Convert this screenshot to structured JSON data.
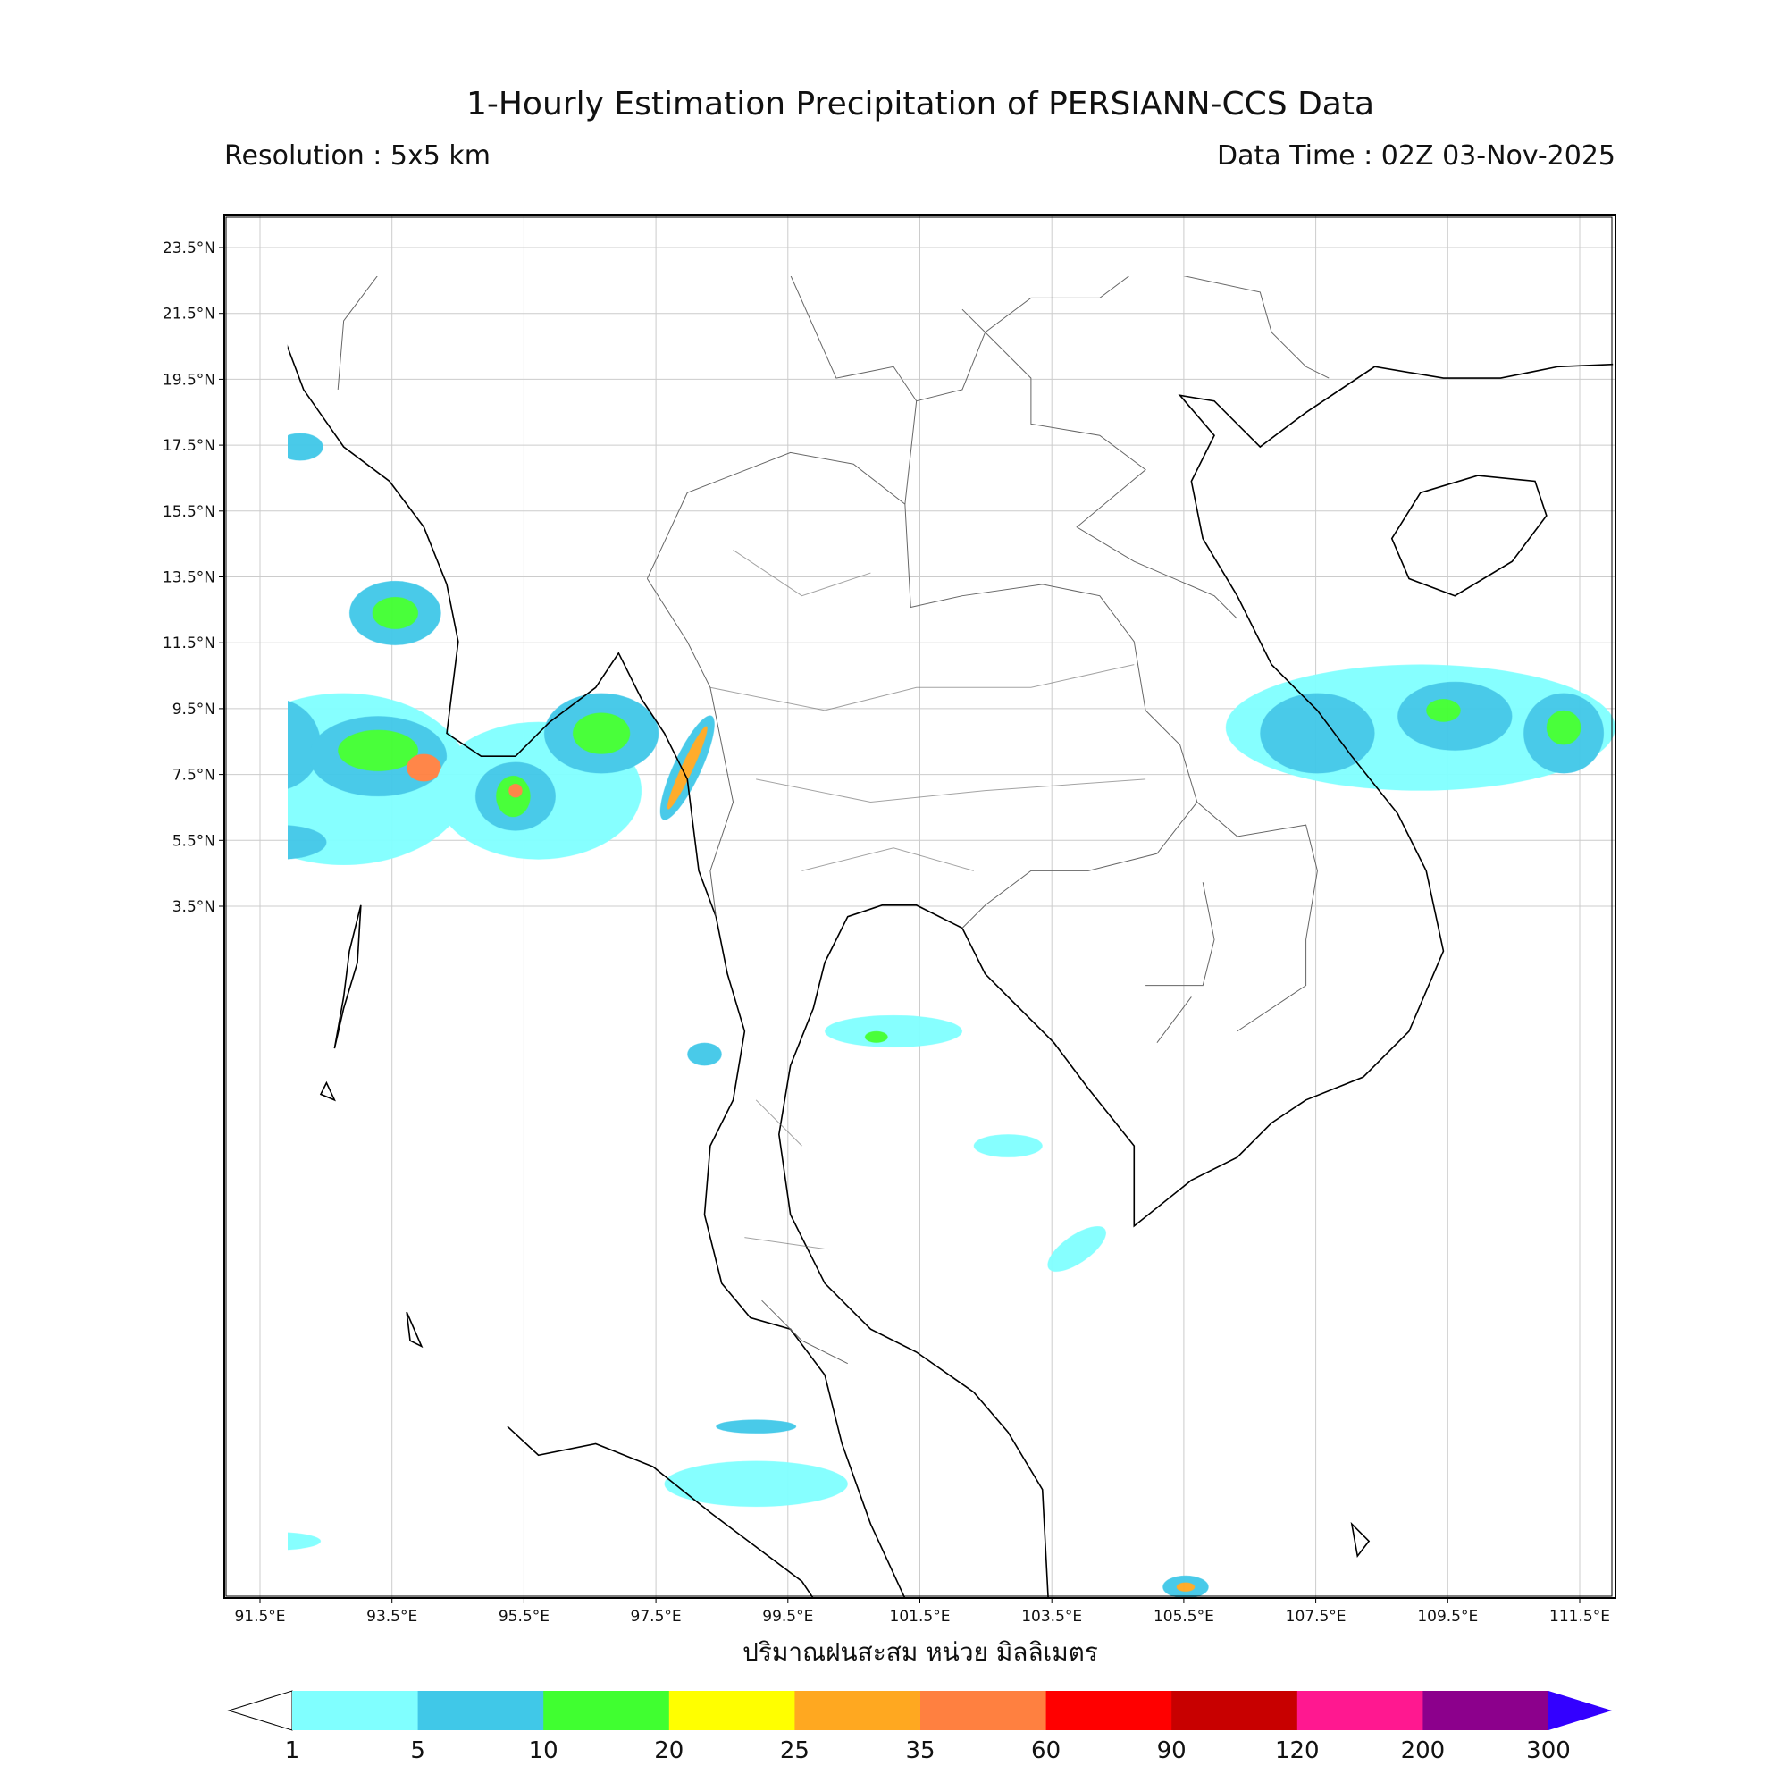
{
  "header": {
    "title": "1-Hourly Estimation Precipitation of PERSIANN-CCS Data",
    "resolution": "Resolution : 5x5 km",
    "data_time": "Data Time : 02Z 03-Nov-2025"
  },
  "map": {
    "lat_labels": [
      "23.5°N",
      "21.5°N",
      "19.5°N",
      "17.5°N",
      "15.5°N",
      "13.5°N",
      "11.5°N",
      "9.5°N",
      "7.5°N",
      "5.5°N",
      "3.5°N"
    ],
    "lon_labels": [
      "91.5°E",
      "93.5°E",
      "95.5°E",
      "97.5°E",
      "99.5°E",
      "101.5°E",
      "103.5°E",
      "105.5°E",
      "107.5°E",
      "109.5°E",
      "111.5°E"
    ]
  },
  "colorbar": {
    "label": "ปริมาณฝนสะสม หน่วย มิลลิเมตร",
    "colors": [
      "#80ffff",
      "#40c8e8",
      "#40ff30",
      "#ffff00",
      "#ffa820",
      "#ff8040",
      "#ff0000",
      "#c80000",
      "#ff1890",
      "#8c008c"
    ],
    "over_color": "#3300ff",
    "ticks": [
      "1",
      "5",
      "10",
      "20",
      "25",
      "35",
      "60",
      "90",
      "120",
      "200",
      "300"
    ]
  }
}
